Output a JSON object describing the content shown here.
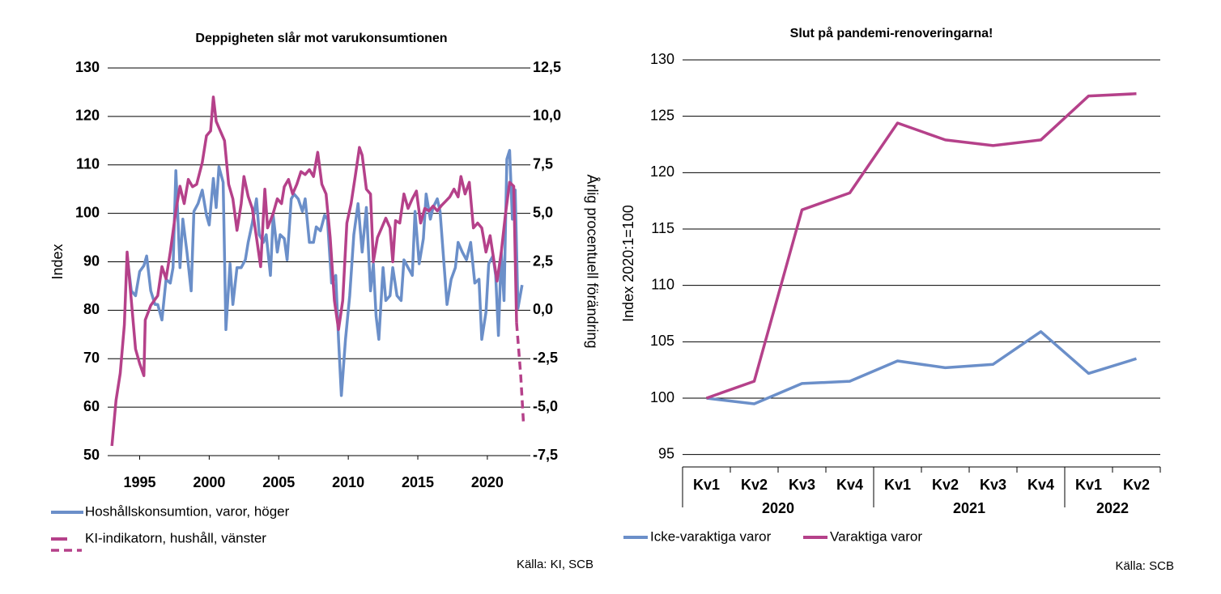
{
  "chart_data": [
    {
      "type": "line",
      "title": "Deppigheten slår mot varukonsumtionen",
      "ylabel": "Index",
      "y2label": "Årlig procentuell förändring",
      "source": "Källa: KI, SCB",
      "xlim": [
        1992.7,
        2022.8
      ],
      "xticks": [
        1995,
        2000,
        2005,
        2010,
        2015,
        2020
      ],
      "ylim": [
        50,
        130
      ],
      "yticks": [
        50,
        60,
        70,
        80,
        90,
        100,
        110,
        120,
        130
      ],
      "y2lim": [
        -7.5,
        12.5
      ],
      "y2ticks": [
        {
          "value": -7.5,
          "label": "-7,5"
        },
        {
          "value": -5,
          "label": "-5,0"
        },
        {
          "value": -2.5,
          "label": "-2,5"
        },
        {
          "value": 0,
          "label": "0,0"
        },
        {
          "value": 2.5,
          "label": "2,5"
        },
        {
          "value": 5,
          "label": "5,0"
        },
        {
          "value": 7.5,
          "label": "7,5"
        },
        {
          "value": 10,
          "label": "10,0"
        },
        {
          "value": 12.5,
          "label": "12,5"
        }
      ],
      "grid": true,
      "legend": "bottom-left",
      "series": [
        {
          "name": "Hoshållskonsumtion, varor, höger",
          "color": "#6b8fc9",
          "axis": "y2",
          "x": [
            1994.1,
            1994.4,
            1994.7,
            1995.0,
            1995.3,
            1995.5,
            1995.8,
            1996.1,
            1996.3,
            1996.6,
            1996.9,
            1997.2,
            1997.4,
            1997.6,
            1997.9,
            1998.1,
            1998.4,
            1998.7,
            1998.9,
            1999.2,
            1999.5,
            1999.8,
            2000.0,
            2000.3,
            2000.5,
            2000.7,
            2001.0,
            2001.2,
            2001.5,
            2001.7,
            2002.0,
            2002.3,
            2002.6,
            2002.8,
            2003.1,
            2003.4,
            2003.6,
            2003.9,
            2004.1,
            2004.4,
            2004.6,
            2004.9,
            2005.1,
            2005.4,
            2005.6,
            2005.9,
            2006.1,
            2006.4,
            2006.7,
            2006.9,
            2007.2,
            2007.5,
            2007.7,
            2008.0,
            2008.3,
            2008.5,
            2008.8,
            2009.1,
            2009.3,
            2009.5,
            2009.8,
            2010.1,
            2010.4,
            2010.7,
            2011.0,
            2011.3,
            2011.6,
            2011.8,
            2012.0,
            2012.2,
            2012.5,
            2012.7,
            2013.0,
            2013.2,
            2013.5,
            2013.8,
            2014.0,
            2014.3,
            2014.6,
            2014.8,
            2015.1,
            2015.4,
            2015.6,
            2015.9,
            2016.1,
            2016.4,
            2016.6,
            2016.9,
            2017.1,
            2017.4,
            2017.7,
            2017.9,
            2018.2,
            2018.5,
            2018.8,
            2019.1,
            2019.4,
            2019.6,
            2019.9,
            2020.1,
            2020.4,
            2020.6,
            2020.8,
            2021.0,
            2021.2,
            2021.4,
            2021.6,
            2021.8,
            2022.0,
            2022.2,
            2022.5
          ],
          "values": [
            2.8,
            1.0,
            0.75,
            2.0,
            2.3,
            2.8,
            1.0,
            0.3,
            0.3,
            -0.5,
            1.6,
            1.4,
            2.2,
            7.2,
            2.2,
            4.7,
            3.0,
            1.0,
            5.1,
            5.5,
            6.2,
            4.9,
            4.4,
            6.8,
            5.3,
            7.4,
            6.6,
            -1.0,
            2.4,
            0.3,
            2.2,
            2.2,
            2.6,
            3.5,
            4.5,
            5.75,
            3.9,
            3.5,
            3.9,
            1.8,
            4.9,
            3.0,
            3.9,
            3.7,
            2.6,
            5.75,
            6.0,
            5.75,
            5.1,
            5.75,
            3.5,
            3.5,
            4.3,
            4.1,
            4.9,
            4.7,
            1.4,
            1.8,
            -1.5,
            -4.4,
            -1.5,
            0.75,
            3.9,
            5.5,
            3.0,
            5.3,
            1.0,
            2.4,
            -0.3,
            -1.5,
            2.2,
            0.5,
            0.75,
            2.2,
            0.75,
            0.5,
            2.6,
            2.2,
            1.8,
            5.1,
            2.4,
            3.7,
            6.0,
            4.7,
            5.3,
            5.75,
            5.1,
            2.2,
            0.3,
            1.6,
            2.2,
            3.5,
            3.0,
            2.6,
            3.5,
            1.4,
            1.6,
            -1.5,
            -0.1,
            2.4,
            2.8,
            1.8,
            -1.3,
            3.0,
            0.5,
            7.8,
            8.25,
            4.7,
            6.2,
            0.1,
            1.3
          ]
        },
        {
          "name": "KI-indikatorn, hushåll, vänster",
          "color": "#b5418a",
          "dashed_after_x": 2022.1,
          "x": [
            1993.0,
            1993.3,
            1993.6,
            1993.9,
            1994.1,
            1994.4,
            1994.7,
            1995.0,
            1995.3,
            1995.4,
            1995.8,
            1996.3,
            1996.6,
            1996.9,
            1997.2,
            1997.6,
            1997.9,
            1998.2,
            1998.5,
            1998.8,
            1999.1,
            1999.5,
            1999.8,
            2000.1,
            2000.3,
            2000.5,
            2000.8,
            2001.1,
            2001.4,
            2001.7,
            2002.0,
            2002.3,
            2002.5,
            2002.8,
            2003.1,
            2003.4,
            2003.7,
            2004.0,
            2004.2,
            2004.6,
            2004.9,
            2005.2,
            2005.4,
            2005.7,
            2006.0,
            2006.3,
            2006.6,
            2006.9,
            2007.2,
            2007.5,
            2007.8,
            2008.1,
            2008.4,
            2008.7,
            2009.0,
            2009.3,
            2009.6,
            2009.9,
            2010.2,
            2010.5,
            2010.8,
            2011.0,
            2011.3,
            2011.6,
            2011.8,
            2012.1,
            2012.4,
            2012.7,
            2013.0,
            2013.2,
            2013.4,
            2013.7,
            2014.0,
            2014.3,
            2014.6,
            2014.9,
            2015.2,
            2015.5,
            2015.8,
            2016.1,
            2016.4,
            2016.7,
            2017.0,
            2017.3,
            2017.6,
            2017.9,
            2018.1,
            2018.4,
            2018.7,
            2019.0,
            2019.3,
            2019.6,
            2019.9,
            2020.2,
            2020.5,
            2020.7,
            2021.0,
            2021.3,
            2021.6,
            2021.9,
            2022.1,
            2022.4,
            2022.6
          ],
          "values": [
            52,
            61.4,
            67,
            77,
            92,
            82,
            72,
            69,
            66.5,
            78,
            81,
            83,
            89,
            86.5,
            92,
            100.5,
            105.6,
            102,
            107,
            105.5,
            106,
            110.5,
            116,
            117,
            124,
            119,
            117,
            115,
            106,
            103,
            96.5,
            102,
            107.6,
            103.5,
            101,
            95,
            89,
            105,
            97,
            100,
            103,
            102,
            105.5,
            107,
            104,
            106,
            108.6,
            108,
            109,
            107.6,
            112.6,
            106,
            104,
            95,
            82,
            76,
            82,
            98,
            102,
            107.6,
            113.6,
            112,
            105,
            104,
            90,
            95,
            97,
            99,
            97,
            90,
            98.5,
            98,
            104,
            101,
            103,
            104.6,
            98,
            101,
            100.5,
            101.5,
            100.5,
            101.6,
            102.5,
            103.4,
            105,
            103.4,
            107.6,
            104,
            106.4,
            97,
            98,
            97,
            92,
            95.4,
            89.7,
            86,
            92,
            99.7,
            106.4,
            105.6,
            77.4,
            66.6,
            56.5
          ]
        }
      ]
    },
    {
      "type": "line",
      "title": "Slut på pandemi-renoveringarna!",
      "ylabel": "Index 2020:1=100",
      "source": "Källa: SCB",
      "category_groups": [
        {
          "label": "2020",
          "categories": [
            "Kv1",
            "Kv2",
            "Kv3",
            "Kv4"
          ]
        },
        {
          "label": "2021",
          "categories": [
            "Kv1",
            "Kv2",
            "Kv3",
            "Kv4"
          ]
        },
        {
          "label": "2022",
          "categories": [
            "Kv1",
            "Kv2"
          ]
        }
      ],
      "ylim": [
        93.9,
        130
      ],
      "yticks": [
        95,
        100,
        105,
        110,
        115,
        120,
        125,
        130
      ],
      "grid": true,
      "legend": "bottom",
      "series": [
        {
          "name": "Icke-varaktiga varor",
          "color": "#6b8fc9",
          "values": [
            100,
            99.5,
            101.3,
            101.5,
            103.3,
            102.7,
            103.0,
            105.9,
            102.2,
            103.5
          ]
        },
        {
          "name": "Varaktiga varor",
          "color": "#b5418a",
          "values": [
            100,
            101.5,
            116.7,
            118.2,
            124.4,
            122.9,
            122.4,
            122.9,
            126.8,
            127.0
          ]
        }
      ]
    }
  ]
}
